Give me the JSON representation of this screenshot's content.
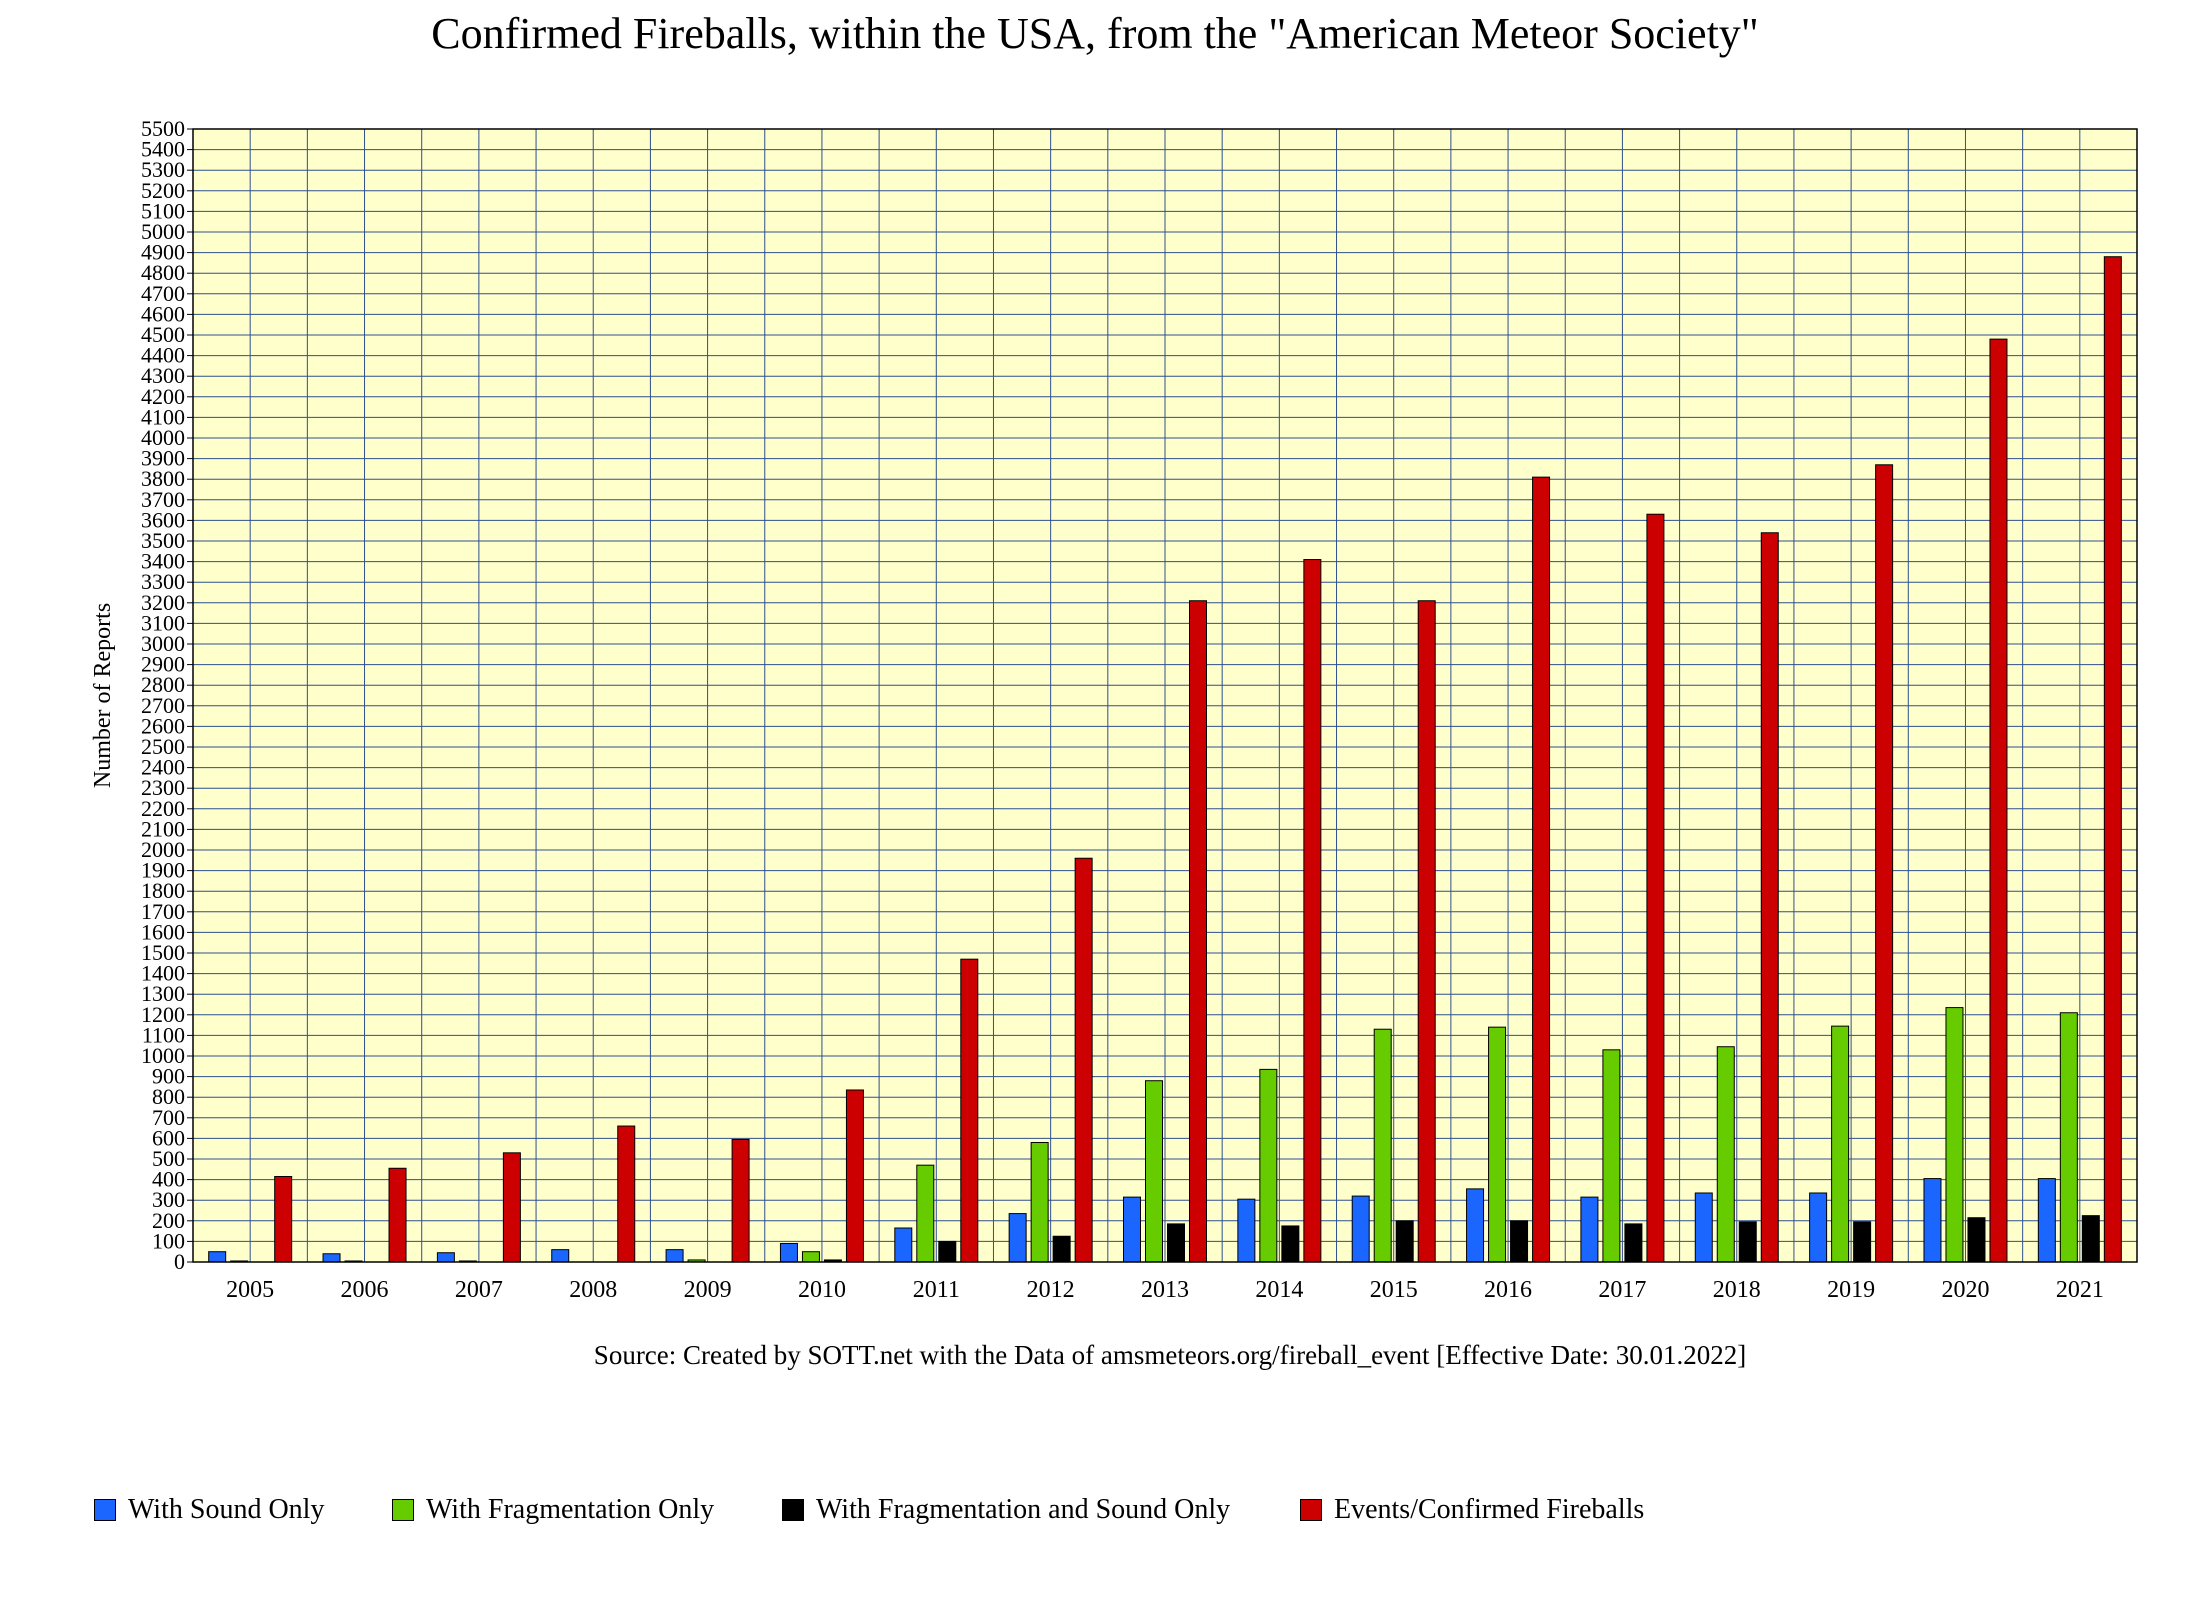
{
  "chart_data": {
    "type": "bar",
    "title": "Confirmed Fireballs, within the USA, from the \"American Meteor Society\"",
    "xlabel": "",
    "ylabel": "Number of Reports",
    "ylim": [
      0,
      5500
    ],
    "ytick_step": 100,
    "grid": true,
    "legend_position": "bottom",
    "categories": [
      "2005",
      "2006",
      "2007",
      "2008",
      "2009",
      "2010",
      "2011",
      "2012",
      "2013",
      "2014",
      "2015",
      "2016",
      "2017",
      "2018",
      "2019",
      "2020",
      "2021"
    ],
    "series": [
      {
        "name": "With Sound Only",
        "color": "#1a66ff",
        "values": [
          50,
          40,
          45,
          60,
          60,
          90,
          165,
          235,
          315,
          305,
          320,
          355,
          315,
          335,
          335,
          405,
          405
        ]
      },
      {
        "name": "With Fragmentation Only",
        "color": "#66cc00",
        "values": [
          5,
          5,
          5,
          0,
          10,
          50,
          470,
          580,
          880,
          935,
          1130,
          1140,
          1030,
          1045,
          1145,
          1235,
          1210
        ]
      },
      {
        "name": "With Fragmentation and Sound Only",
        "color": "#000000",
        "values": [
          0,
          0,
          0,
          0,
          0,
          10,
          100,
          125,
          185,
          175,
          200,
          200,
          185,
          195,
          195,
          215,
          225
        ]
      },
      {
        "name": "Events/Confirmed Fireballs",
        "color": "#cc0000",
        "values": [
          415,
          455,
          530,
          660,
          595,
          835,
          1470,
          1960,
          3210,
          3410,
          3210,
          3810,
          3630,
          3540,
          3870,
          4480,
          4880
        ]
      }
    ]
  },
  "colors": {
    "plot_background": "#ffffcc",
    "grid": "#2f4f8f"
  },
  "source": "Source: Created by SOTT.net with the Data of amsmeteors.org/fireball_event [Effective Date: 30.01.2022]"
}
